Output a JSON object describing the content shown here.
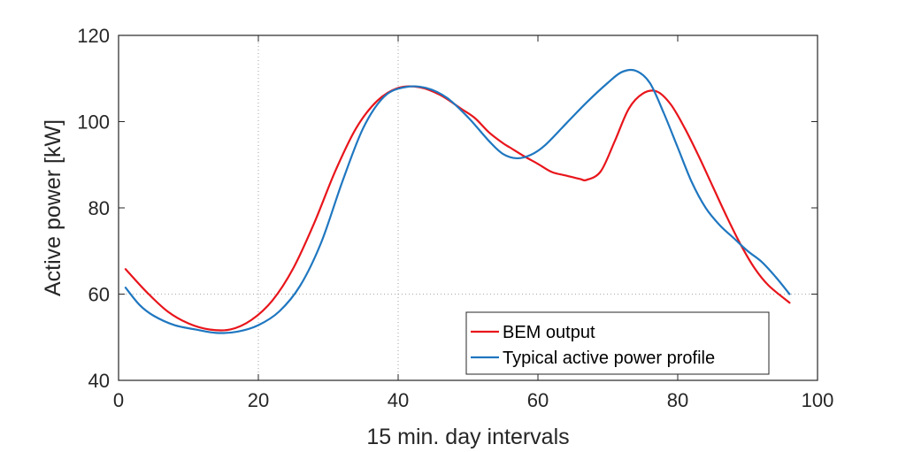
{
  "chart_data": {
    "type": "line",
    "xlabel": "15 min. day intervals",
    "ylabel": "Active power [kW]",
    "xlim": [
      0,
      100
    ],
    "ylim": [
      40,
      120
    ],
    "xticks": [
      0,
      20,
      40,
      60,
      80,
      100
    ],
    "yticks": [
      40,
      60,
      80,
      100,
      120
    ],
    "x_tick_labels": [
      "0",
      "20",
      "40",
      "60",
      "80",
      "100"
    ],
    "y_tick_labels": [
      "40",
      "60",
      "80",
      "100",
      "120"
    ],
    "grid": "dotted lines at x=20, x=40 and y=60",
    "legend_position": "bottom-right",
    "series": [
      {
        "name": "BEM output",
        "color": "#e8151b",
        "x": [
          1,
          4,
          7,
          10,
          13,
          16,
          19,
          22,
          25,
          28,
          31,
          34,
          37,
          40,
          43,
          46,
          49,
          51,
          53,
          55,
          56,
          58,
          60,
          62,
          64,
          66,
          67,
          69,
          71,
          73,
          75,
          77,
          79,
          81,
          83,
          85,
          87,
          89,
          91,
          93,
          96
        ],
        "y": [
          65.8,
          60.5,
          56.0,
          53.2,
          51.8,
          51.8,
          54.0,
          58.5,
          66.0,
          76.5,
          88.5,
          98.5,
          104.8,
          107.8,
          108.0,
          106.2,
          103.0,
          100.8,
          97.5,
          95.0,
          94.0,
          92.0,
          90.2,
          88.3,
          87.5,
          86.7,
          86.5,
          88.5,
          95.5,
          103.0,
          106.5,
          107.0,
          104.0,
          98.5,
          92.0,
          85.0,
          78.0,
          71.5,
          66.0,
          62.0,
          58.0
        ]
      },
      {
        "name": "Typical active power profile",
        "color": "#1f77c0",
        "x": [
          1,
          3,
          5,
          8,
          11,
          14,
          17,
          20,
          23,
          26,
          29,
          32,
          35,
          38,
          41,
          44,
          47,
          50,
          53,
          55,
          57,
          59,
          61,
          64,
          67,
          70,
          72,
          74,
          76,
          78,
          80,
          82,
          84,
          86,
          88,
          90,
          92,
          94,
          96
        ],
        "y": [
          61.5,
          57.5,
          55.0,
          52.8,
          51.8,
          51.0,
          51.3,
          52.8,
          56.0,
          62.0,
          72.0,
          86.0,
          98.5,
          105.8,
          108.0,
          107.8,
          105.5,
          101.0,
          95.5,
          92.5,
          91.5,
          92.3,
          94.5,
          99.5,
          104.5,
          109.0,
          111.5,
          111.8,
          109.0,
          102.0,
          94.0,
          86.0,
          80.0,
          76.0,
          73.0,
          70.0,
          67.5,
          64.0,
          60.0
        ]
      }
    ]
  }
}
